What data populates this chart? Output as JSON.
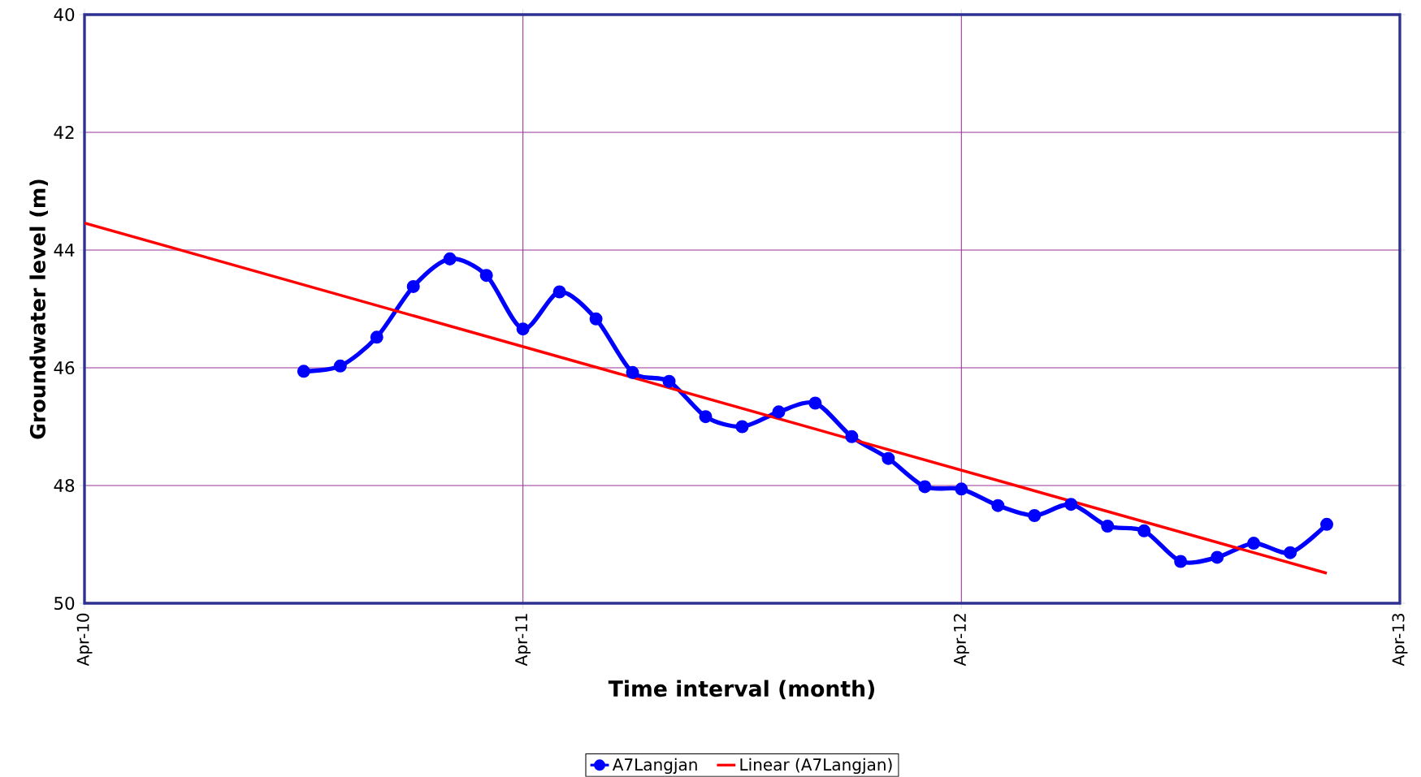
{
  "chart_data": {
    "type": "line",
    "xlabel": "Time interval (month)",
    "ylabel": "Groundwater level (m)",
    "x": [
      "2010-10",
      "2010-11",
      "2010-12",
      "2011-01",
      "2011-02",
      "2011-03",
      "2011-04",
      "2011-05",
      "2011-06",
      "2011-07",
      "2011-08",
      "2011-09",
      "2011-10",
      "2011-11",
      "2011-12",
      "2012-01",
      "2012-02",
      "2012-03",
      "2012-04",
      "2012-05",
      "2012-06",
      "2012-07",
      "2012-08",
      "2012-09",
      "2012-10",
      "2012-11",
      "2012-12",
      "2013-01",
      "2013-02"
    ],
    "series": [
      {
        "name": "A7Langjan",
        "color": "#0000ff",
        "marker": "circle",
        "values": [
          46.06,
          45.97,
          45.48,
          44.62,
          44.15,
          44.43,
          45.34,
          44.71,
          45.17,
          46.08,
          46.23,
          46.83,
          47.0,
          46.75,
          46.6,
          47.17,
          47.54,
          48.02,
          48.06,
          48.34,
          48.51,
          48.32,
          48.69,
          48.77,
          49.29,
          49.22,
          48.98,
          49.14,
          48.66
        ]
      },
      {
        "name": "Linear (A7Langjan)",
        "type": "line",
        "color": "#ff0000",
        "marker": "none",
        "x": [
          "2010-04",
          "2013-02"
        ],
        "values": [
          43.54,
          49.49
        ]
      }
    ],
    "xlim": [
      "2010-04",
      "2013-04"
    ],
    "xticks": [
      {
        "value": "2010-04",
        "label": "Apr-10"
      },
      {
        "value": "2011-04",
        "label": "Apr-11"
      },
      {
        "value": "2012-04",
        "label": "Apr-12"
      },
      {
        "value": "2013-04",
        "label": "Apr-13"
      }
    ],
    "ylim": [
      50,
      40
    ],
    "yticks": [
      40,
      42,
      44,
      46,
      48,
      50
    ],
    "grid": true,
    "legend": "bottom"
  }
}
